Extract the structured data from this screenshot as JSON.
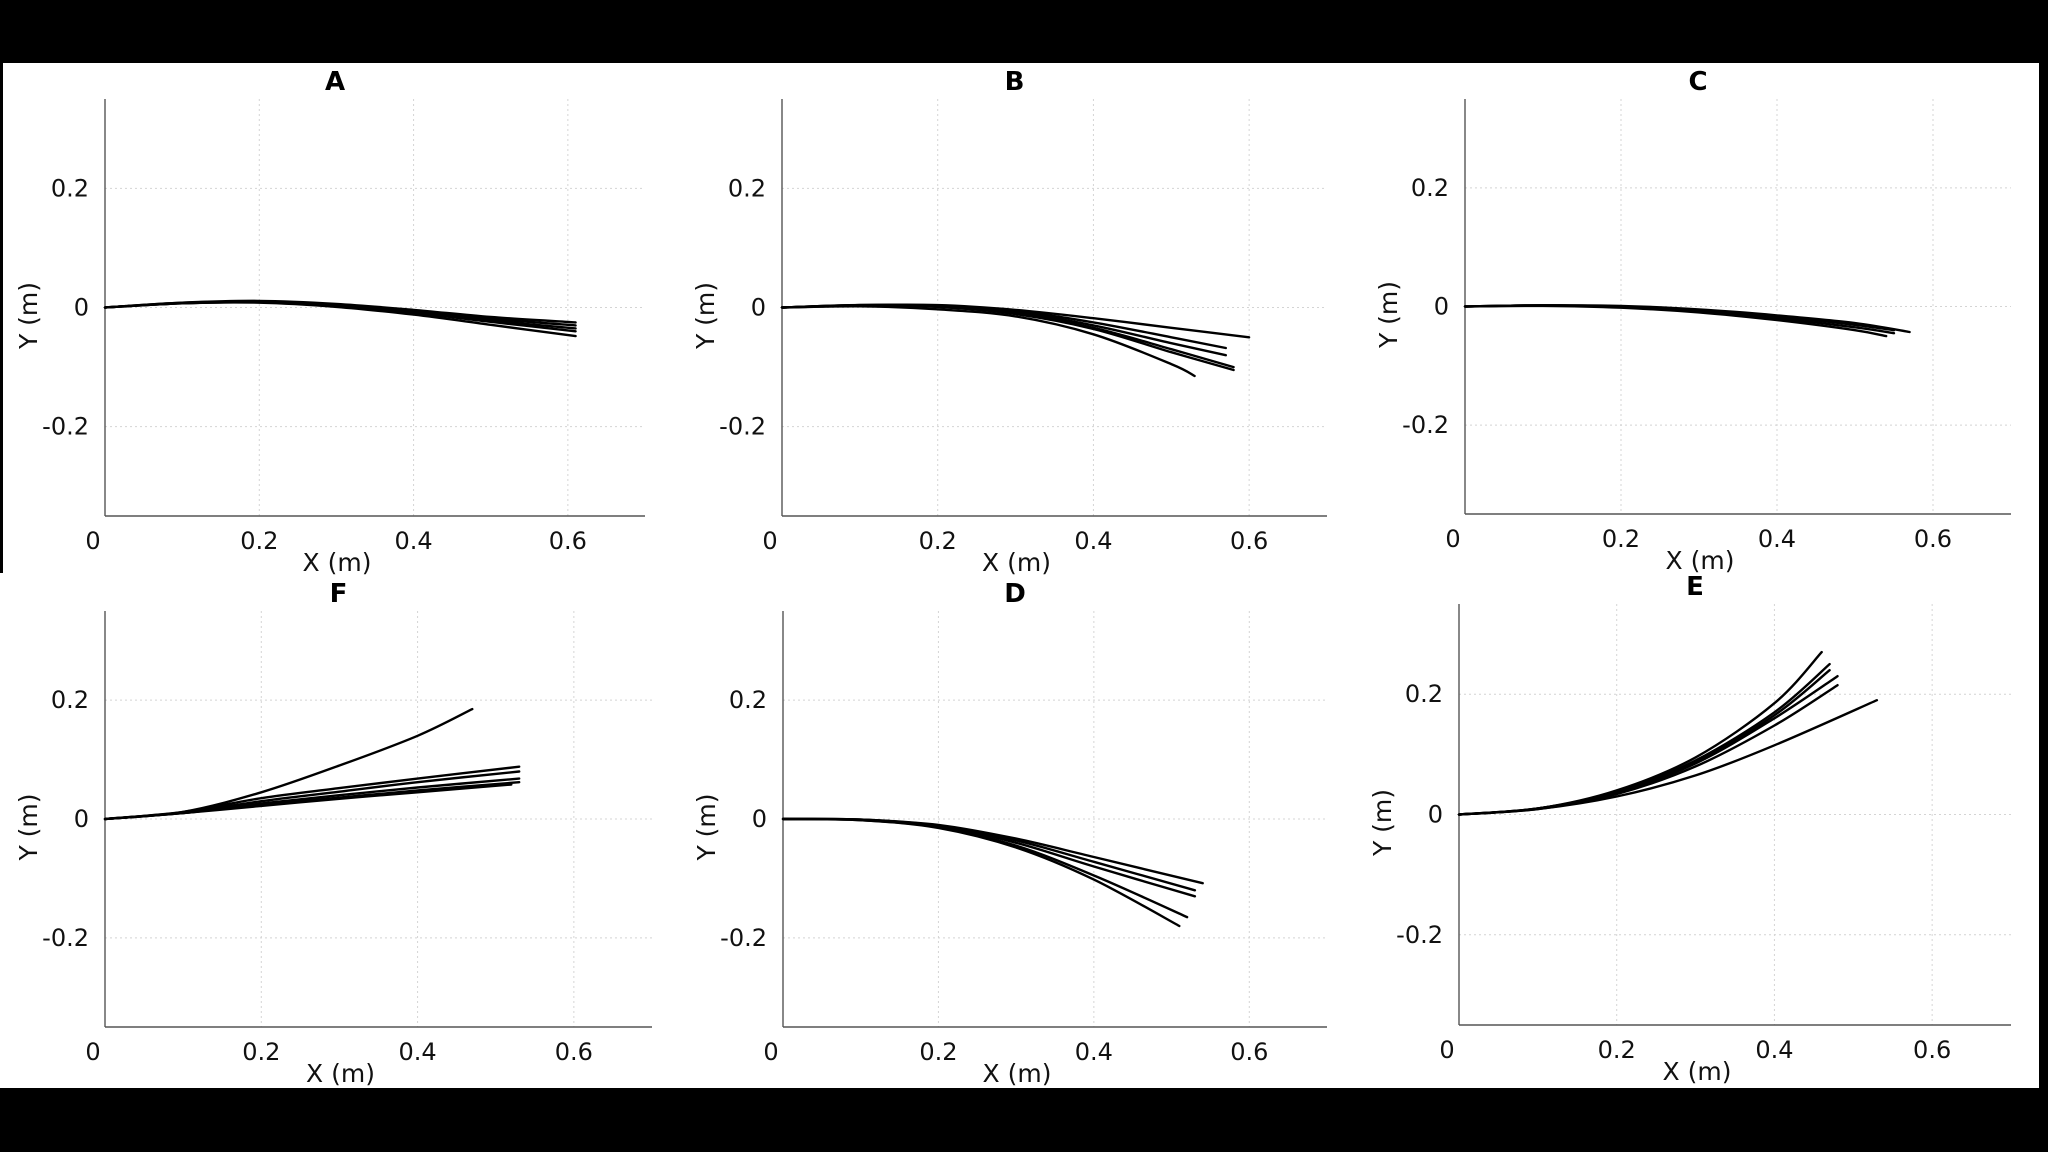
{
  "chart_data": [
    {
      "type": "line",
      "title": "A",
      "xlabel": "X (m)",
      "ylabel": "Y (m)",
      "xlim": [
        0,
        0.7
      ],
      "ylim": [
        -0.35,
        0.35
      ],
      "xticks": [
        0,
        0.2,
        0.4,
        0.6
      ],
      "xtick_labels": [
        "0",
        "0.2",
        "0.4",
        "0.6"
      ],
      "yticks": [
        0.2,
        0,
        -0.2
      ],
      "ytick_labels": [
        "0.2",
        "0",
        "-0.2"
      ],
      "grid": true,
      "series": [
        {
          "x": [
            0,
            0.1,
            0.2,
            0.3,
            0.4,
            0.5,
            0.61
          ],
          "y": [
            0,
            0.008,
            0.011,
            0.006,
            -0.004,
            -0.016,
            -0.025
          ]
        },
        {
          "x": [
            0,
            0.1,
            0.2,
            0.3,
            0.4,
            0.5,
            0.61
          ],
          "y": [
            0,
            0.008,
            0.01,
            0.005,
            -0.006,
            -0.019,
            -0.03
          ]
        },
        {
          "x": [
            0,
            0.1,
            0.2,
            0.3,
            0.4,
            0.5,
            0.61
          ],
          "y": [
            0,
            0.007,
            0.009,
            0.004,
            -0.008,
            -0.022,
            -0.035
          ]
        },
        {
          "x": [
            0,
            0.1,
            0.2,
            0.3,
            0.4,
            0.5,
            0.61
          ],
          "y": [
            0,
            0.007,
            0.009,
            0.003,
            -0.009,
            -0.024,
            -0.04
          ]
        },
        {
          "x": [
            0,
            0.1,
            0.2,
            0.3,
            0.4,
            0.5,
            0.61
          ],
          "y": [
            0,
            0.007,
            0.008,
            0.001,
            -0.012,
            -0.029,
            -0.048
          ]
        }
      ]
    },
    {
      "type": "line",
      "title": "B",
      "xlabel": "X (m)",
      "ylabel": "Y (m)",
      "xlim": [
        0,
        0.7
      ],
      "ylim": [
        -0.35,
        0.35
      ],
      "xticks": [
        0,
        0.2,
        0.4,
        0.6
      ],
      "xtick_labels": [
        "0",
        "0.2",
        "0.4",
        "0.6"
      ],
      "yticks": [
        0.2,
        0,
        -0.2
      ],
      "ytick_labels": [
        "0.2",
        "0",
        "-0.2"
      ],
      "grid": true,
      "series": [
        {
          "x": [
            0,
            0.1,
            0.2,
            0.3,
            0.4,
            0.5,
            0.6
          ],
          "y": [
            0,
            0.004,
            0.004,
            -0.004,
            -0.018,
            -0.034,
            -0.05
          ]
        },
        {
          "x": [
            0,
            0.1,
            0.2,
            0.3,
            0.4,
            0.5,
            0.57
          ],
          "y": [
            0,
            0.004,
            0.003,
            -0.006,
            -0.025,
            -0.05,
            -0.068
          ]
        },
        {
          "x": [
            0,
            0.1,
            0.2,
            0.3,
            0.4,
            0.5,
            0.57
          ],
          "y": [
            0,
            0.004,
            0.002,
            -0.008,
            -0.03,
            -0.06,
            -0.08
          ]
        },
        {
          "x": [
            0,
            0.1,
            0.2,
            0.3,
            0.4,
            0.5,
            0.58
          ],
          "y": [
            0,
            0.003,
            0.001,
            -0.01,
            -0.034,
            -0.07,
            -0.1
          ]
        },
        {
          "x": [
            0,
            0.1,
            0.2,
            0.3,
            0.4,
            0.5,
            0.58
          ],
          "y": [
            0,
            0.003,
            0.001,
            -0.011,
            -0.036,
            -0.075,
            -0.105
          ]
        },
        {
          "x": [
            0,
            0.1,
            0.2,
            0.3,
            0.4,
            0.5,
            0.53
          ],
          "y": [
            0,
            0.002,
            -0.003,
            -0.015,
            -0.045,
            -0.095,
            -0.115
          ]
        }
      ]
    },
    {
      "type": "line",
      "title": "C",
      "xlabel": "X (m)",
      "ylabel": "Y (m)",
      "xlim": [
        0,
        0.7
      ],
      "ylim": [
        -0.35,
        0.35
      ],
      "xticks": [
        0,
        0.2,
        0.4,
        0.6
      ],
      "xtick_labels": [
        "0",
        "0.2",
        "0.4",
        "0.6"
      ],
      "yticks": [
        0.2,
        0,
        -0.2
      ],
      "ytick_labels": [
        "0.2",
        "0",
        "-0.2"
      ],
      "grid": true,
      "series": [
        {
          "x": [
            0,
            0.1,
            0.2,
            0.3,
            0.4,
            0.5,
            0.57
          ],
          "y": [
            0,
            0.002,
            0.001,
            -0.005,
            -0.015,
            -0.028,
            -0.043
          ]
        },
        {
          "x": [
            0,
            0.1,
            0.2,
            0.3,
            0.4,
            0.5,
            0.55
          ],
          "y": [
            0,
            0.002,
            0.0,
            -0.006,
            -0.017,
            -0.031,
            -0.04
          ]
        },
        {
          "x": [
            0,
            0.1,
            0.2,
            0.3,
            0.4,
            0.5,
            0.55
          ],
          "y": [
            0,
            0.002,
            -0.001,
            -0.008,
            -0.02,
            -0.035,
            -0.045
          ]
        },
        {
          "x": [
            0,
            0.1,
            0.2,
            0.3,
            0.4,
            0.5,
            0.54
          ],
          "y": [
            0,
            0.001,
            -0.002,
            -0.01,
            -0.023,
            -0.04,
            -0.05
          ]
        }
      ]
    },
    {
      "type": "line",
      "title": "F",
      "xlabel": "X (m)",
      "ylabel": "Y (m)",
      "xlim": [
        0,
        0.7
      ],
      "ylim": [
        -0.35,
        0.35
      ],
      "xticks": [
        0,
        0.2,
        0.4,
        0.6
      ],
      "xtick_labels": [
        "0",
        "0.2",
        "0.4",
        "0.6"
      ],
      "yticks": [
        0.2,
        0,
        -0.2
      ],
      "ytick_labels": [
        "0.2",
        "0",
        "-0.2"
      ],
      "grid": true,
      "series": [
        {
          "x": [
            0,
            0.1,
            0.2,
            0.3,
            0.4,
            0.47
          ],
          "y": [
            0,
            0.012,
            0.045,
            0.09,
            0.14,
            0.185
          ]
        },
        {
          "x": [
            0,
            0.1,
            0.2,
            0.3,
            0.4,
            0.53
          ],
          "y": [
            0,
            0.012,
            0.035,
            0.052,
            0.068,
            0.088
          ]
        },
        {
          "x": [
            0,
            0.1,
            0.2,
            0.3,
            0.4,
            0.53
          ],
          "y": [
            0,
            0.011,
            0.03,
            0.046,
            0.062,
            0.08
          ]
        },
        {
          "x": [
            0,
            0.1,
            0.2,
            0.3,
            0.4,
            0.53
          ],
          "y": [
            0,
            0.01,
            0.026,
            0.04,
            0.053,
            0.068
          ]
        },
        {
          "x": [
            0,
            0.1,
            0.2,
            0.3,
            0.4,
            0.53
          ],
          "y": [
            0,
            0.01,
            0.024,
            0.036,
            0.048,
            0.062
          ]
        },
        {
          "x": [
            0,
            0.1,
            0.2,
            0.3,
            0.4,
            0.52
          ],
          "y": [
            0,
            0.01,
            0.022,
            0.034,
            0.045,
            0.058
          ]
        }
      ]
    },
    {
      "type": "line",
      "title": "D",
      "xlabel": "X (m)",
      "ylabel": "Y (m)",
      "xlim": [
        0,
        0.7
      ],
      "ylim": [
        -0.35,
        0.35
      ],
      "xticks": [
        0,
        0.2,
        0.4,
        0.6
      ],
      "xtick_labels": [
        "0",
        "0.2",
        "0.4",
        "0.6"
      ],
      "yticks": [
        0.2,
        0,
        -0.2
      ],
      "ytick_labels": [
        "0.2",
        "0",
        "-0.2"
      ],
      "grid": true,
      "series": [
        {
          "x": [
            0,
            0.1,
            0.2,
            0.3,
            0.4,
            0.54
          ],
          "y": [
            0,
            -0.001,
            -0.01,
            -0.033,
            -0.064,
            -0.108
          ]
        },
        {
          "x": [
            0,
            0.1,
            0.2,
            0.3,
            0.4,
            0.53
          ],
          "y": [
            0,
            -0.001,
            -0.011,
            -0.036,
            -0.072,
            -0.12
          ]
        },
        {
          "x": [
            0,
            0.1,
            0.2,
            0.3,
            0.4,
            0.53
          ],
          "y": [
            0,
            -0.001,
            -0.012,
            -0.04,
            -0.08,
            -0.13
          ]
        },
        {
          "x": [
            0,
            0.1,
            0.2,
            0.3,
            0.4,
            0.52
          ],
          "y": [
            0,
            -0.002,
            -0.014,
            -0.045,
            -0.095,
            -0.165
          ]
        },
        {
          "x": [
            0,
            0.1,
            0.2,
            0.3,
            0.4,
            0.51
          ],
          "y": [
            0,
            -0.002,
            -0.015,
            -0.048,
            -0.102,
            -0.18
          ]
        }
      ]
    },
    {
      "type": "line",
      "title": "E",
      "xlabel": "X (m)",
      "ylabel": "Y (m)",
      "xlim": [
        0,
        0.7
      ],
      "ylim": [
        -0.35,
        0.35
      ],
      "xticks": [
        0,
        0.2,
        0.4,
        0.6
      ],
      "xtick_labels": [
        "0",
        "0.2",
        "0.4",
        "0.6"
      ],
      "yticks": [
        0.2,
        0,
        -0.2
      ],
      "ytick_labels": [
        "0.2",
        "0",
        "-0.2"
      ],
      "grid": true,
      "series": [
        {
          "x": [
            0,
            0.1,
            0.2,
            0.3,
            0.4,
            0.46
          ],
          "y": [
            0,
            0.01,
            0.04,
            0.095,
            0.185,
            0.27
          ]
        },
        {
          "x": [
            0,
            0.1,
            0.2,
            0.3,
            0.4,
            0.47
          ],
          "y": [
            0,
            0.01,
            0.038,
            0.09,
            0.17,
            0.25
          ]
        },
        {
          "x": [
            0,
            0.1,
            0.2,
            0.3,
            0.4,
            0.47
          ],
          "y": [
            0,
            0.01,
            0.037,
            0.087,
            0.165,
            0.24
          ]
        },
        {
          "x": [
            0,
            0.1,
            0.2,
            0.3,
            0.4,
            0.48
          ],
          "y": [
            0,
            0.01,
            0.036,
            0.085,
            0.16,
            0.23
          ]
        },
        {
          "x": [
            0,
            0.1,
            0.2,
            0.3,
            0.4,
            0.48
          ],
          "y": [
            0,
            0.009,
            0.034,
            0.08,
            0.148,
            0.215
          ]
        },
        {
          "x": [
            0,
            0.1,
            0.2,
            0.3,
            0.4,
            0.53
          ],
          "y": [
            0,
            0.009,
            0.03,
            0.065,
            0.115,
            0.19
          ]
        }
      ]
    }
  ]
}
